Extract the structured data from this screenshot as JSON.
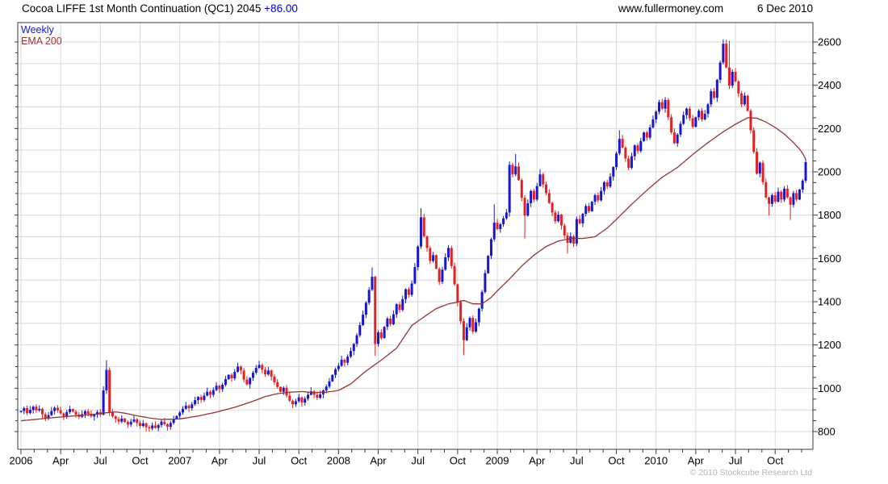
{
  "header": {
    "title": "Cocoa LIFFE 1st Month Continuation (QC1) 2045",
    "change": "+86.00",
    "site": "www.fullermoney.com",
    "date": "6 Dec 2010"
  },
  "legend": {
    "weekly": "Weekly",
    "ema": "EMA 200"
  },
  "footer": {
    "copyright": "© 2010 Stockcube Research Ltd"
  },
  "colors": {
    "up": "#1717cf",
    "down": "#e62020",
    "ema": "#993333",
    "grid": "#d8d8d8",
    "axis": "#3a3a3a",
    "text": "#000000",
    "change_text": "#0000cd",
    "copyright_text": "#b4b4b4"
  },
  "chart_data": {
    "type": "candlestick",
    "timeframe": "weekly",
    "title": "Cocoa LIFFE 1st Month Continuation (QC1)",
    "last_price": 2045,
    "change": "+86.00",
    "start_label": "2006",
    "end_label": "6 Dec 2010",
    "x_axis": {
      "quarter_labels": [
        "2006",
        "Apr",
        "Jul",
        "Oct",
        "2007",
        "Apr",
        "Jul",
        "Oct",
        "2008",
        "Apr",
        "Jul",
        "Oct",
        "2009",
        "Apr",
        "Jul",
        "Oct",
        "2010",
        "Apr",
        "Jul",
        "Oct"
      ],
      "weeks_per_quarter": 13
    },
    "y_axis": {
      "labels": [
        800,
        1000,
        1200,
        1400,
        1600,
        1800,
        2000,
        2200,
        2400,
        2600
      ],
      "label_step": 200,
      "minor_tick_step": 50,
      "grid_step": 100,
      "min": 800,
      "max": 2600
    },
    "first_open": 890,
    "closes": [
      895,
      908,
      885,
      900,
      915,
      898,
      905,
      880,
      862,
      876,
      895,
      910,
      898,
      884,
      871,
      890,
      904,
      892,
      878,
      868,
      880,
      894,
      882,
      870,
      878,
      890,
      878,
      990,
      1085,
      888,
      870,
      858,
      846,
      860,
      844,
      832,
      846,
      856,
      840,
      826,
      838,
      820,
      814,
      828,
      817,
      830,
      846,
      834,
      822,
      840,
      858,
      872,
      888,
      905,
      920,
      908,
      926,
      945,
      960,
      946,
      966,
      984,
      970,
      992,
      1012,
      996,
      1016,
      1042,
      1062,
      1046,
      1076,
      1100,
      1082,
      1040,
      1018,
      1048,
      1072,
      1094,
      1108,
      1086,
      1064,
      1082,
      1054,
      1028,
      1006,
      984,
      1002,
      966,
      942,
      926,
      940,
      958,
      934,
      952,
      970,
      986,
      970,
      956,
      972,
      990,
      1008,
      1032,
      1062,
      1088,
      1104,
      1132,
      1118,
      1146,
      1172,
      1205,
      1245,
      1292,
      1340,
      1395,
      1455,
      1515,
      1205,
      1258,
      1232,
      1284,
      1322,
      1296,
      1342,
      1388,
      1362,
      1412,
      1458,
      1432,
      1484,
      1560,
      1655,
      1790,
      1702,
      1648,
      1588,
      1615,
      1552,
      1492,
      1548,
      1605,
      1648,
      1565,
      1480,
      1398,
      1310,
      1222,
      1282,
      1325,
      1262,
      1305,
      1368,
      1445,
      1532,
      1612,
      1688,
      1765,
      1735,
      1758,
      1785,
      1812,
      2032,
      1988,
      2025,
      1962,
      1880,
      1798,
      1855,
      1912,
      1872,
      1934,
      1988,
      1942,
      1902,
      1856,
      1812,
      1772,
      1802,
      1752,
      1706,
      1672,
      1702,
      1668,
      1782,
      1762,
      1806,
      1842,
      1818,
      1862,
      1892,
      1868,
      1912,
      1952,
      1932,
      1978,
      2022,
      2085,
      2152,
      2112,
      2062,
      2018,
      2072,
      2122,
      2096,
      2142,
      2182,
      2158,
      2205,
      2242,
      2278,
      2322,
      2292,
      2332,
      2252,
      2182,
      2132,
      2172,
      2222,
      2262,
      2292,
      2248,
      2208,
      2252,
      2282,
      2242,
      2268,
      2312,
      2372,
      2342,
      2425,
      2505,
      2592,
      2482,
      2398,
      2462,
      2418,
      2362,
      2312,
      2352,
      2282,
      2192,
      2092,
      1992,
      2042,
      1952,
      1882,
      1852,
      1892,
      1862,
      1908,
      1872,
      1922,
      1882,
      1848,
      1902,
      1872,
      1918,
      1959,
      2045
    ],
    "high_overrides": {
      "28": 1130,
      "115": 1558,
      "131": 1832,
      "140": 1662,
      "155": 1850,
      "160": 2048,
      "162": 2082,
      "170": 2012,
      "196": 2192,
      "211": 2345,
      "230": 2612,
      "232": 2605
    },
    "low_overrides": {
      "29": 872,
      "116": 1150,
      "145": 1152,
      "165": 1692,
      "179": 1622,
      "245": 1798,
      "252": 1778
    },
    "ema200_keyframes": [
      [
        0,
        850
      ],
      [
        6,
        858
      ],
      [
        12,
        866
      ],
      [
        18,
        873
      ],
      [
        24,
        880
      ],
      [
        28,
        887
      ],
      [
        31,
        891
      ],
      [
        34,
        885
      ],
      [
        38,
        873
      ],
      [
        42,
        863
      ],
      [
        46,
        856
      ],
      [
        52,
        858
      ],
      [
        58,
        872
      ],
      [
        64,
        890
      ],
      [
        70,
        912
      ],
      [
        76,
        940
      ],
      [
        80,
        962
      ],
      [
        84,
        975
      ],
      [
        88,
        982
      ],
      [
        92,
        985
      ],
      [
        96,
        980
      ],
      [
        100,
        982
      ],
      [
        104,
        990
      ],
      [
        108,
        1020
      ],
      [
        113,
        1080
      ],
      [
        118,
        1130
      ],
      [
        123,
        1185
      ],
      [
        128,
        1290
      ],
      [
        132,
        1330
      ],
      [
        136,
        1368
      ],
      [
        140,
        1390
      ],
      [
        143,
        1398
      ],
      [
        145,
        1406
      ],
      [
        148,
        1390
      ],
      [
        151,
        1390
      ],
      [
        154,
        1420
      ],
      [
        156,
        1450
      ],
      [
        160,
        1505
      ],
      [
        164,
        1565
      ],
      [
        168,
        1615
      ],
      [
        172,
        1655
      ],
      [
        176,
        1680
      ],
      [
        180,
        1692
      ],
      [
        184,
        1692
      ],
      [
        188,
        1700
      ],
      [
        192,
        1740
      ],
      [
        195,
        1780
      ],
      [
        200,
        1850
      ],
      [
        205,
        1915
      ],
      [
        210,
        1975
      ],
      [
        215,
        2020
      ],
      [
        220,
        2080
      ],
      [
        225,
        2135
      ],
      [
        230,
        2185
      ],
      [
        234,
        2220
      ],
      [
        238,
        2250
      ],
      [
        241,
        2248
      ],
      [
        244,
        2230
      ],
      [
        247,
        2205
      ],
      [
        250,
        2175
      ],
      [
        253,
        2135
      ],
      [
        255,
        2105
      ],
      [
        256,
        2085
      ],
      [
        257,
        2058
      ]
    ]
  }
}
